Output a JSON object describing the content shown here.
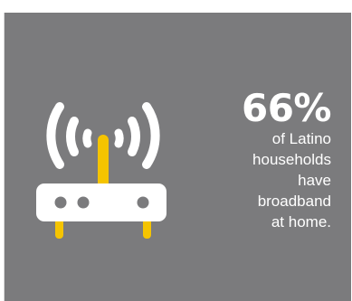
{
  "stat": {
    "value": "66%",
    "description_lines": [
      "of Latino",
      "households",
      "have",
      "broadband",
      "at home."
    ]
  },
  "icons": {
    "router": "wifi-router-icon"
  },
  "colors": {
    "background": "#7b7b7d",
    "text": "#ffffff",
    "router_body": "#ffffff",
    "accent": "#f5c400"
  }
}
